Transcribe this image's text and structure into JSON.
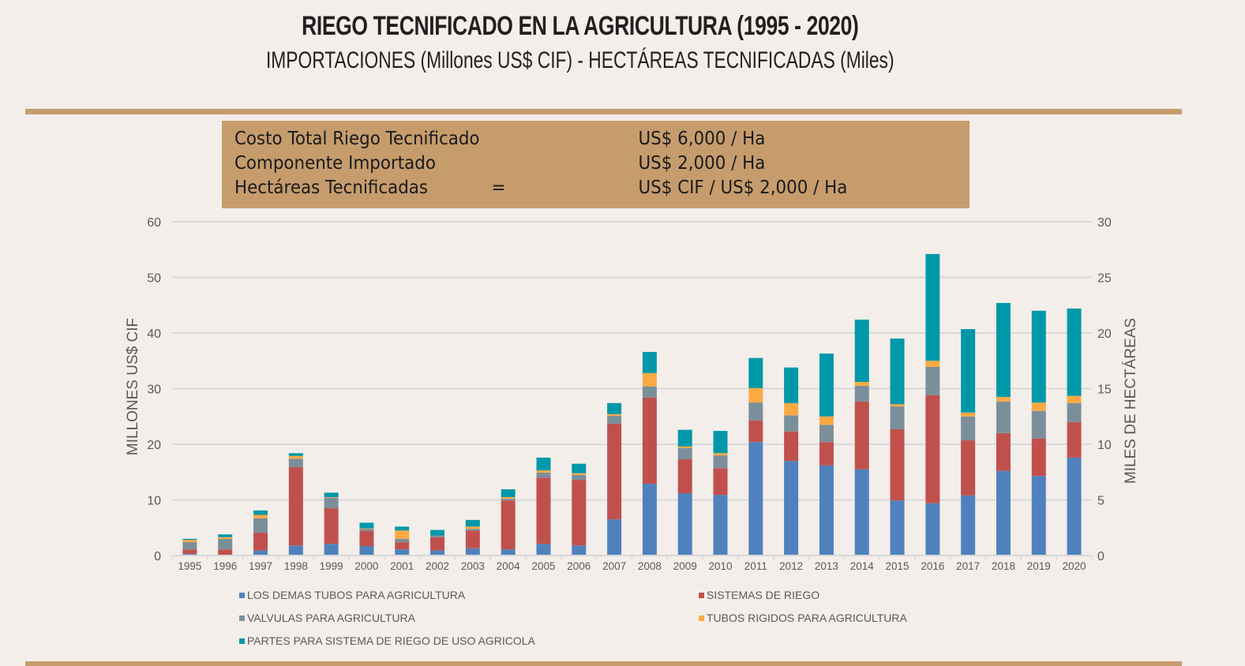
{
  "header": {
    "title": "RIEGO TECNIFICADO EN LA AGRICULTURA (1995 - 2020)",
    "subtitle": "IMPORTACIONES (Millones US$ CIF) - HECTÁREAS TECNIFICADAS (Miles)"
  },
  "infobox": {
    "rows": [
      {
        "label": "Costo Total Riego Tecnificado",
        "eq": "",
        "value": "US$ 6,000 / Ha"
      },
      {
        "label": "Componente Importado",
        "eq": "",
        "value": "US$ 2,000 / Ha"
      },
      {
        "label": "Hectáreas Tecnificadas",
        "eq": "=",
        "value": "US$ CIF / US$ 2,000 / Ha"
      }
    ]
  },
  "colors": {
    "background": "#f3eeea",
    "band": "#c69c6d"
  },
  "chart_data": {
    "type": "bar",
    "stacked": true,
    "title": "RIEGO TECNIFICADO EN LA AGRICULTURA (1995 - 2020)",
    "xlabel": "",
    "ylabel": "MILLONES US$ CIF",
    "y2label": "MILES DE HECTÁREAS",
    "ylim": [
      0,
      60
    ],
    "y2lim": [
      0,
      30
    ],
    "yticks": [
      0,
      10,
      20,
      30,
      40,
      50,
      60
    ],
    "y2ticks": [
      0,
      5,
      10,
      15,
      20,
      25,
      30
    ],
    "grid": true,
    "legend_position": "bottom",
    "categories": [
      "1995",
      "1996",
      "1997",
      "1998",
      "1999",
      "2000",
      "2001",
      "2002",
      "2003",
      "2004",
      "2005",
      "2006",
      "2007",
      "2008",
      "2009",
      "2010",
      "2011",
      "2012",
      "2013",
      "2014",
      "2015",
      "2016",
      "2017",
      "2018",
      "2019",
      "2020"
    ],
    "series": [
      {
        "name": "LOS DEMAS TUBOS PARA AGRICULTURA",
        "color": "#4f81bd",
        "values": [
          0.3,
          0.0,
          0.9,
          1.8,
          2.1,
          1.7,
          1.1,
          0.9,
          1.3,
          1.1,
          2.1,
          1.8,
          6.5,
          12.9,
          11.2,
          10.9,
          20.4,
          17.0,
          16.2,
          15.5,
          9.9,
          9.4,
          10.8,
          15.2,
          14.3,
          17.6
        ]
      },
      {
        "name": "SISTEMAS DE RIEGO",
        "color": "#c0504d",
        "values": [
          0.8,
          1.1,
          3.2,
          14.1,
          6.4,
          2.7,
          1.3,
          2.4,
          3.2,
          8.8,
          11.9,
          11.8,
          17.2,
          15.5,
          6.1,
          4.8,
          3.9,
          5.3,
          4.2,
          12.2,
          12.8,
          19.4,
          9.9,
          6.8,
          6.7,
          6.4
        ]
      },
      {
        "name": "VALVULAS PARA AGRICULTURA",
        "color": "#7b8f9a",
        "values": [
          1.3,
          1.9,
          2.6,
          1.5,
          1.9,
          0.4,
          0.6,
          0.3,
          0.3,
          0.3,
          0.9,
          0.9,
          1.4,
          2.0,
          2.0,
          2.3,
          3.2,
          2.9,
          3.1,
          2.8,
          4.1,
          5.1,
          4.3,
          5.7,
          5.0,
          3.4
        ]
      },
      {
        "name": "TUBOS RIGIDOS PARA AGRICULTURA",
        "color": "#fbaa42",
        "values": [
          0.4,
          0.3,
          0.6,
          0.5,
          0.1,
          0.1,
          1.5,
          0.0,
          0.4,
          0.3,
          0.4,
          0.3,
          0.3,
          2.4,
          0.3,
          0.4,
          2.6,
          2.2,
          1.5,
          0.7,
          0.4,
          1.1,
          0.7,
          0.8,
          1.5,
          1.3
        ]
      },
      {
        "name": "PARTES PARA SISTEMA DE RIEGO DE USO AGRICOLA",
        "color": "#0098a9",
        "values": [
          0.2,
          0.5,
          0.8,
          0.5,
          0.8,
          1.0,
          0.7,
          1.0,
          1.2,
          1.4,
          2.3,
          1.7,
          2.0,
          3.8,
          3.0,
          4.0,
          5.4,
          6.4,
          11.3,
          11.2,
          11.8,
          19.2,
          15.0,
          16.9,
          16.5,
          15.7
        ]
      }
    ]
  }
}
